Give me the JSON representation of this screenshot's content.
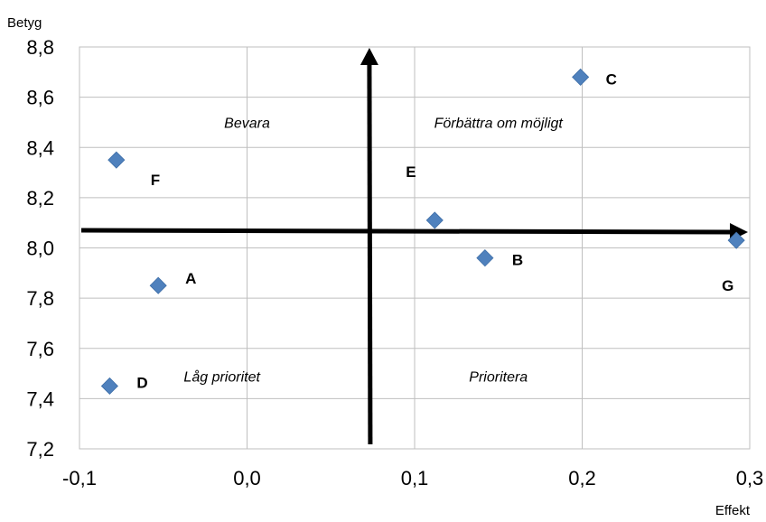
{
  "chart_data": {
    "type": "scatter",
    "ylabel": "Betyg",
    "xlabel": "Effekt",
    "xlim": [
      -0.1,
      0.3
    ],
    "ylim": [
      7.2,
      8.8
    ],
    "x_ticks": [
      "-0,1",
      "0,0",
      "0,1",
      "0,2",
      "0,3"
    ],
    "y_ticks": [
      "7,2",
      "7,4",
      "7,6",
      "7,8",
      "8,0",
      "8,2",
      "8,4",
      "8,6",
      "8,8"
    ],
    "grid": true,
    "points": [
      {
        "label": "A",
        "x": -0.053,
        "y": 7.85
      },
      {
        "label": "B",
        "x": 0.142,
        "y": 7.96
      },
      {
        "label": "C",
        "x": 0.199,
        "y": 8.68
      },
      {
        "label": "D",
        "x": -0.082,
        "y": 7.45
      },
      {
        "label": "E",
        "x": 0.112,
        "y": 8.11
      },
      {
        "label": "F",
        "x": -0.078,
        "y": 8.35
      },
      {
        "label": "G",
        "x": 0.292,
        "y": 8.03
      }
    ],
    "crosshair": {
      "x": 0.073,
      "y": 8.07
    },
    "quadrants": [
      {
        "label": "Bevara",
        "x": 0.0,
        "y": 8.5
      },
      {
        "label": "Förbättra om möjligt",
        "x": 0.15,
        "y": 8.5
      },
      {
        "label": "Låg prioritet",
        "x": -0.015,
        "y": 7.49
      },
      {
        "label": "Prioritera",
        "x": 0.15,
        "y": 7.49
      }
    ]
  }
}
